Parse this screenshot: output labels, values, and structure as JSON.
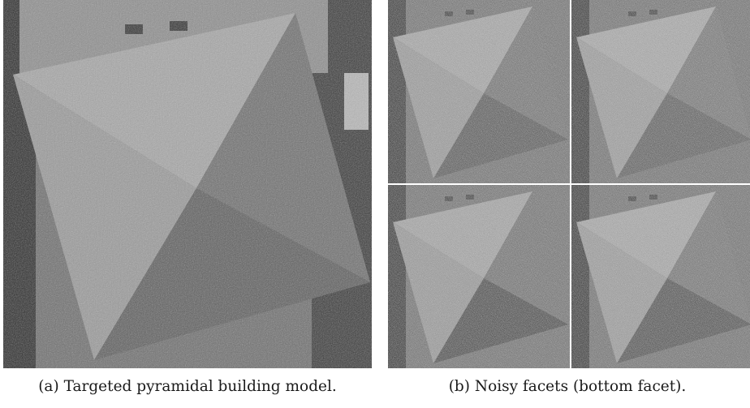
{
  "figure": {
    "panel_a": {
      "caption_label": "(a)",
      "caption_text": "Targeted pyramidal building model."
    },
    "panel_b": {
      "caption_label": "(b)",
      "caption_text": "Noisy facets (bottom facet)."
    }
  }
}
